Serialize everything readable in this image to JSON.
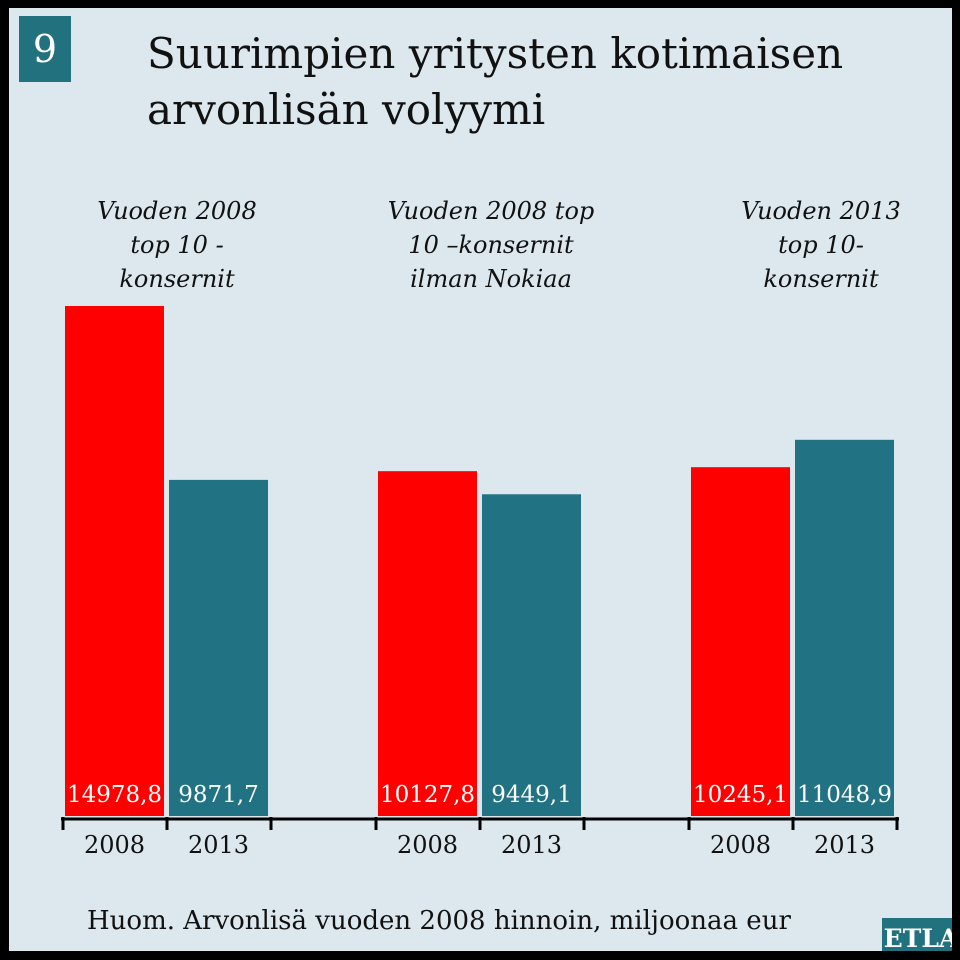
{
  "badge_number": "9",
  "title_line1": "Suurimpien yritysten kotimaisen",
  "title_line2": "arvonlisän volyymi",
  "footnote": "Huom. Arvonlisä vuoden 2008 hinnoin, miljoonaa eur",
  "logo": "ETLA",
  "colors": {
    "y2008": "#ff0000",
    "y2013": "#217384",
    "background": "#dce8ee",
    "accent": "#21717f"
  },
  "chart_data": {
    "type": "bar",
    "groups": [
      {
        "label_lines": [
          "Vuoden 2008",
          "top 10 -",
          "konsernit"
        ],
        "bars": [
          {
            "year": "2008",
            "value": 14978.8,
            "label": "14978,8"
          },
          {
            "year": "2013",
            "value": 9871.7,
            "label": "9871,7"
          }
        ]
      },
      {
        "label_lines": [
          "Vuoden 2008 top",
          "10 –konsernit",
          "ilman Nokiaa"
        ],
        "bars": [
          {
            "year": "2008",
            "value": 10127.8,
            "label": "10127,8"
          },
          {
            "year": "2013",
            "value": 9449.1,
            "label": "9449,1"
          }
        ]
      },
      {
        "label_lines": [
          "Vuoden 2013",
          "top 10-",
          "konsernit"
        ],
        "bars": [
          {
            "year": "2008",
            "value": 10245.1,
            "label": "10245,1"
          },
          {
            "year": "2013",
            "value": 11048.9,
            "label": "11048,9"
          }
        ]
      }
    ],
    "ylim": [
      0,
      14978.8
    ]
  }
}
